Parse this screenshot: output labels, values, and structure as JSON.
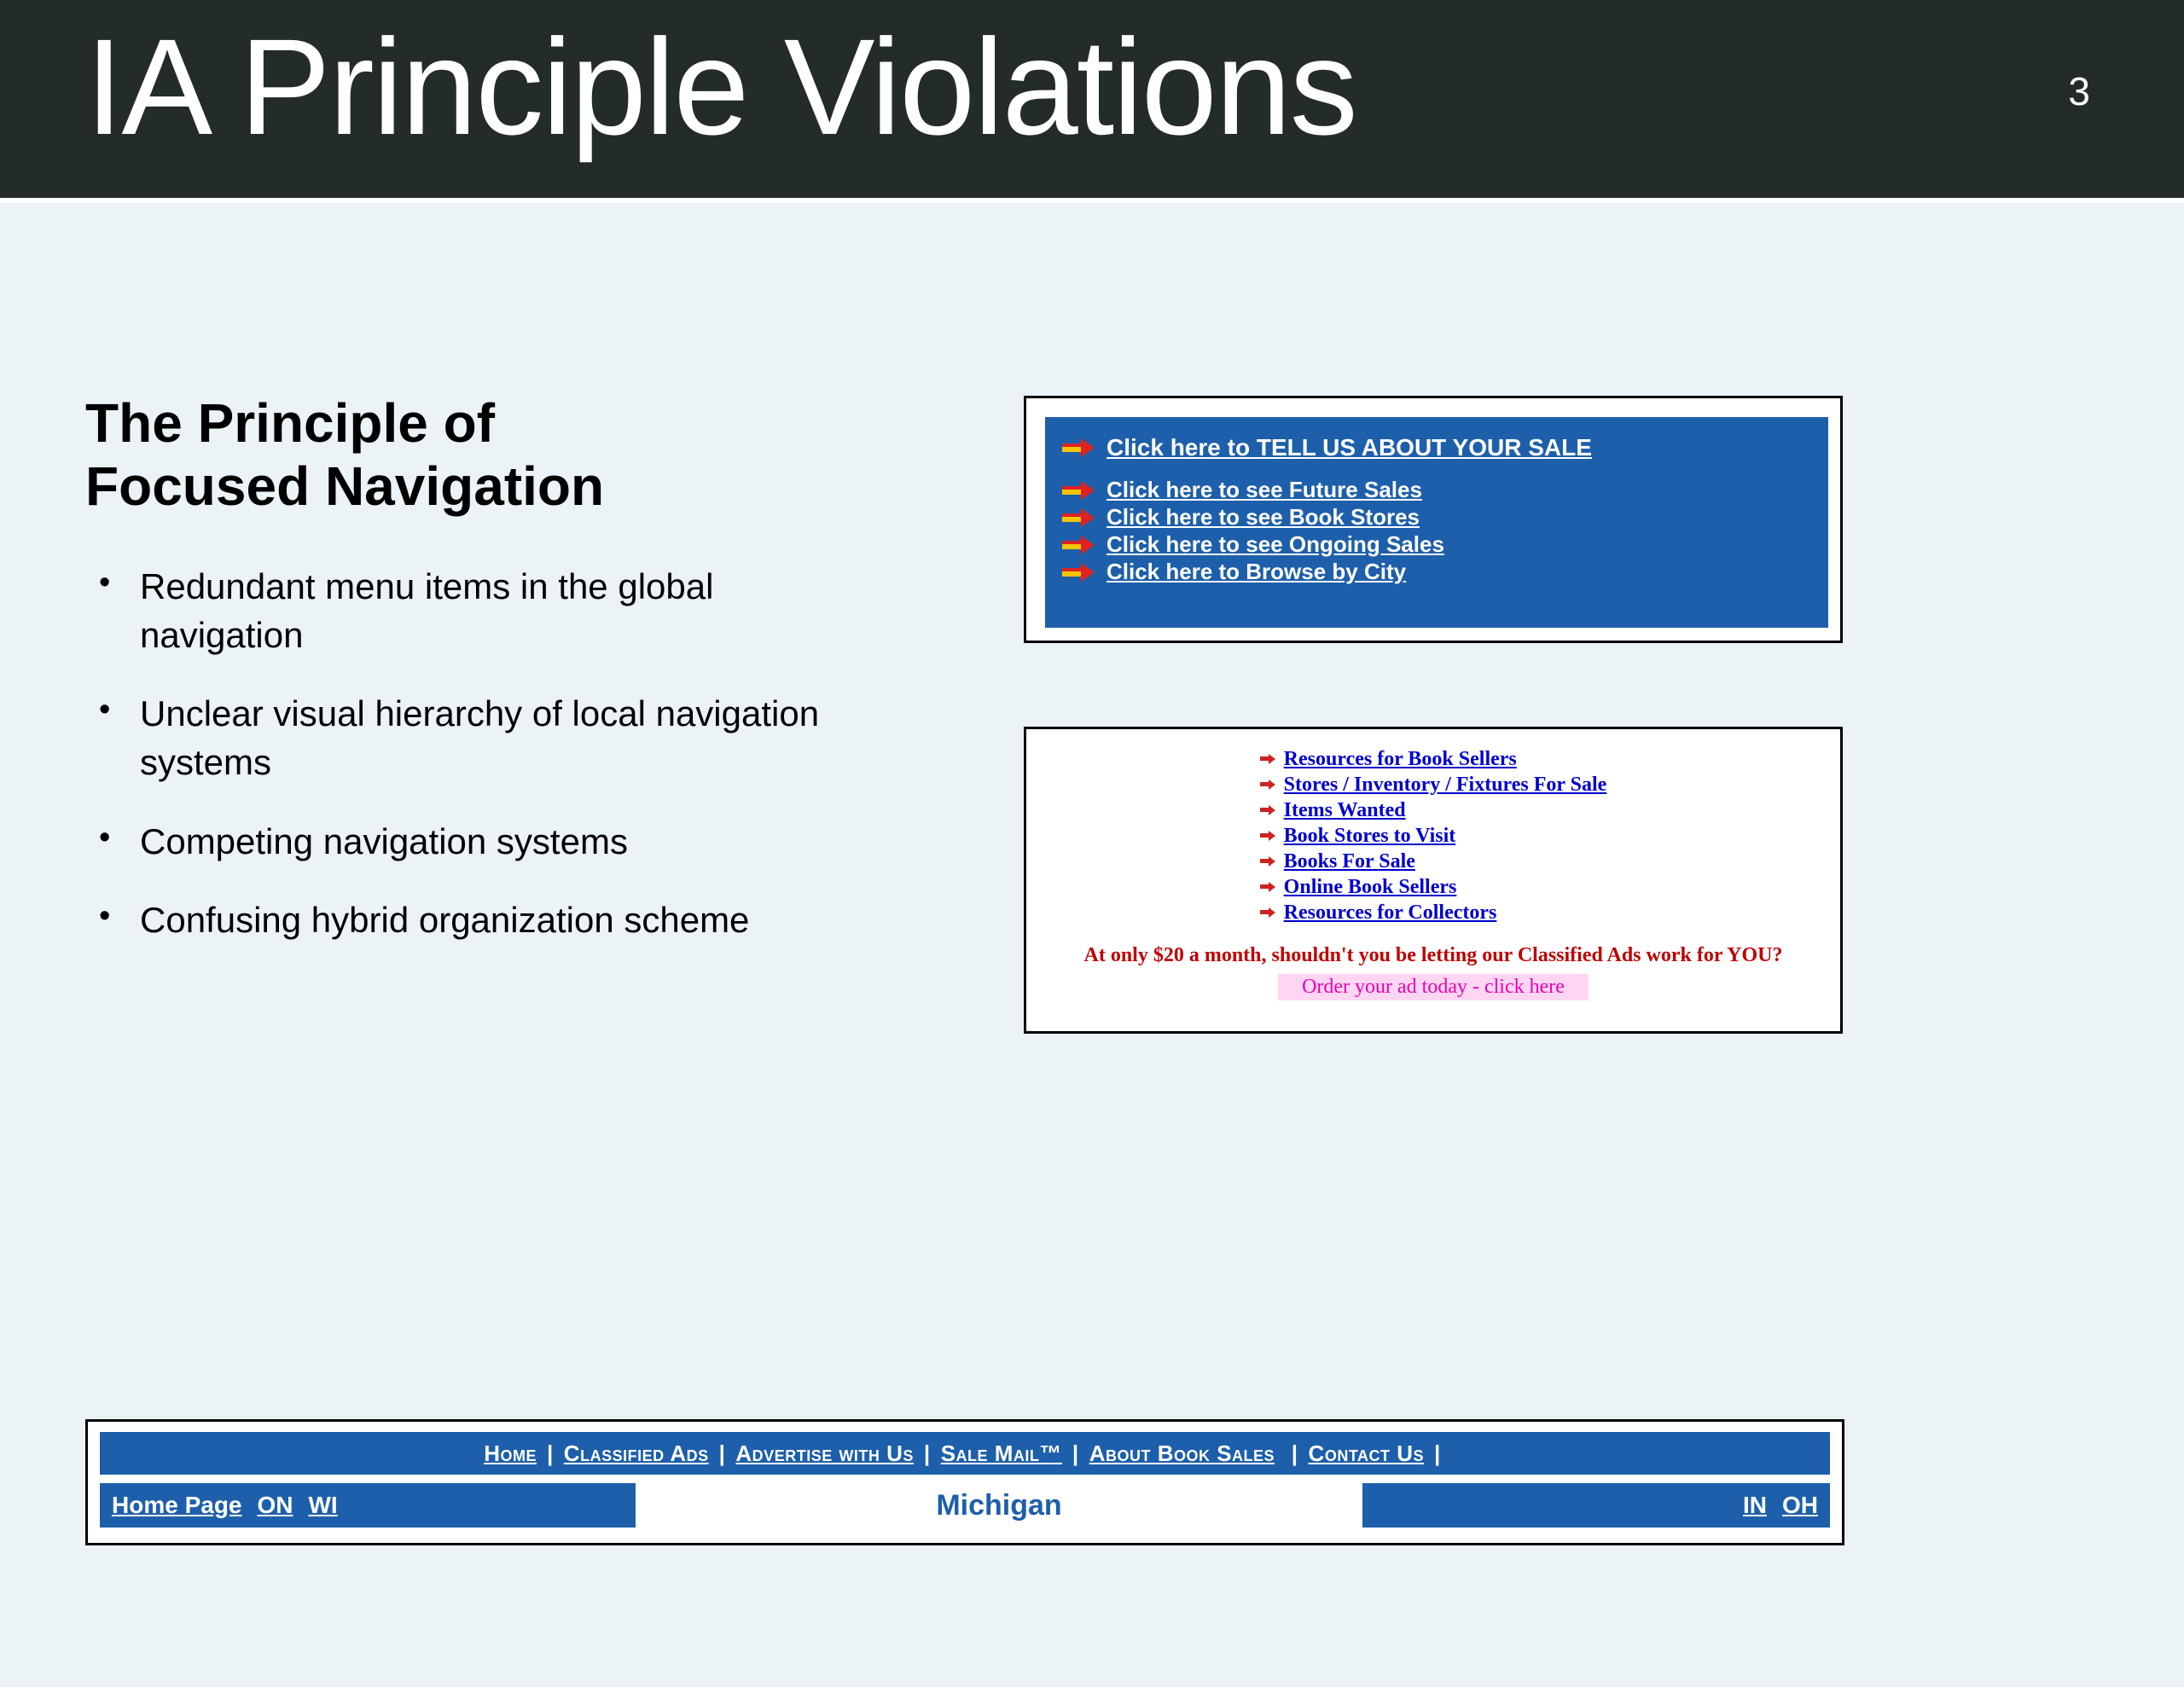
{
  "slide": {
    "title": "IA Principle Violations",
    "number": "3"
  },
  "section": {
    "heading_l1": "The Principle of",
    "heading_l2": "Focused Navigation",
    "bullets": [
      "Redundant menu items in the global navigation",
      "Unclear visual hierarchy of local navigation systems",
      "Competing navigation systems",
      "Confusing hybrid organization scheme"
    ]
  },
  "shot1": {
    "links": [
      "Click here to TELL US ABOUT YOUR SALE",
      "Click here to see Future Sales",
      "Click here to see Book Stores",
      "Click here to see Ongoing Sales",
      "Click here to Browse by City"
    ]
  },
  "shot2": {
    "links": [
      "Resources for Book Sellers",
      "Stores / Inventory / Fixtures For Sale",
      "Items Wanted",
      "Book Stores to Visit",
      "Books For Sale",
      "Online Book Sellers",
      "Resources for Collectors"
    ],
    "promo_red": "At only $20 a month, shouldn't you be letting our Classified Ads work for YOU?",
    "promo_pink": "Order your ad today - click here"
  },
  "shot3": {
    "top": [
      "Home",
      "Classified Ads",
      "Advertise with Us",
      "Sale Mail™",
      "About Book Sales",
      "Contact Us"
    ],
    "seg1": {
      "a": "Home Page",
      "b": "ON",
      "c": "WI"
    },
    "seg2": "Michigan",
    "seg3": {
      "a": "IN",
      "b": "OH"
    }
  }
}
